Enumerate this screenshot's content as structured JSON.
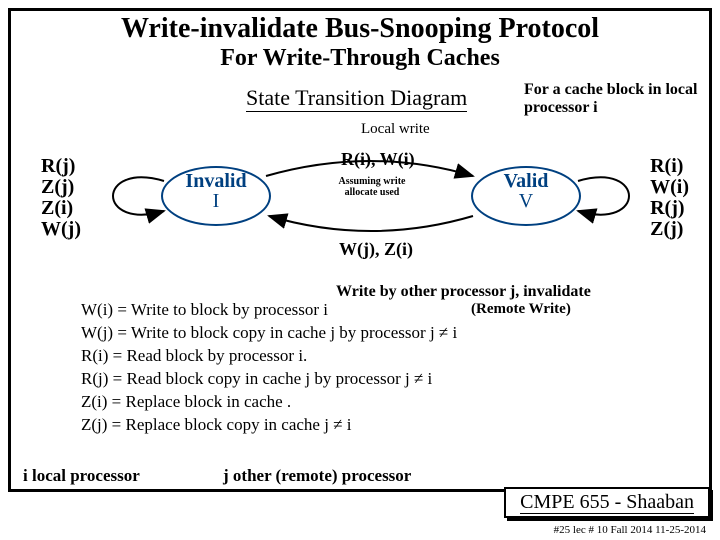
{
  "title": "Write-invalidate Bus-Snooping Protocol",
  "subtitle1": "For Write-Through Caches",
  "subtitle2": "State Transition Diagram",
  "note_top": "For a cache block in local processor i",
  "local_write": "Local write",
  "left_labels": "R(j)\nZ(j)\nZ(i)\nW(j)",
  "right_labels": "R(i)\nW(i)\nR(j)\nZ(j)",
  "state_invalid": {
    "name": "Invalid",
    "short": "I"
  },
  "state_valid": {
    "name": "Valid",
    "short": "V"
  },
  "edge_top": "R(i), W(i)",
  "edge_mid": "Assuming write allocate used",
  "edge_bot": "W(j), Z(i)",
  "write_by_other": "Write by other processor j, invalidate",
  "remote_write": "(Remote Write)",
  "legend": [
    "W(i) =  Write to block by processor i",
    "W(j) = Write to block copy in cache j by processor j  ≠ i",
    "R(i) = Read block by processor i.",
    "R(j) = Read block copy in cache j by processor j  ≠ i",
    "Z(i) = Replace block in cache .",
    "Z(j) = Replace block copy in cache j ≠ i"
  ],
  "footer_i": "i  local processor",
  "footer_j": "j   other (remote) processor",
  "course": "CMPE 655 - Shaaban",
  "lecline": "#25  lec # 10   Fall 2014    11-25-2014",
  "colors": {
    "node_stroke": "#004080",
    "arrow": "#000000"
  }
}
